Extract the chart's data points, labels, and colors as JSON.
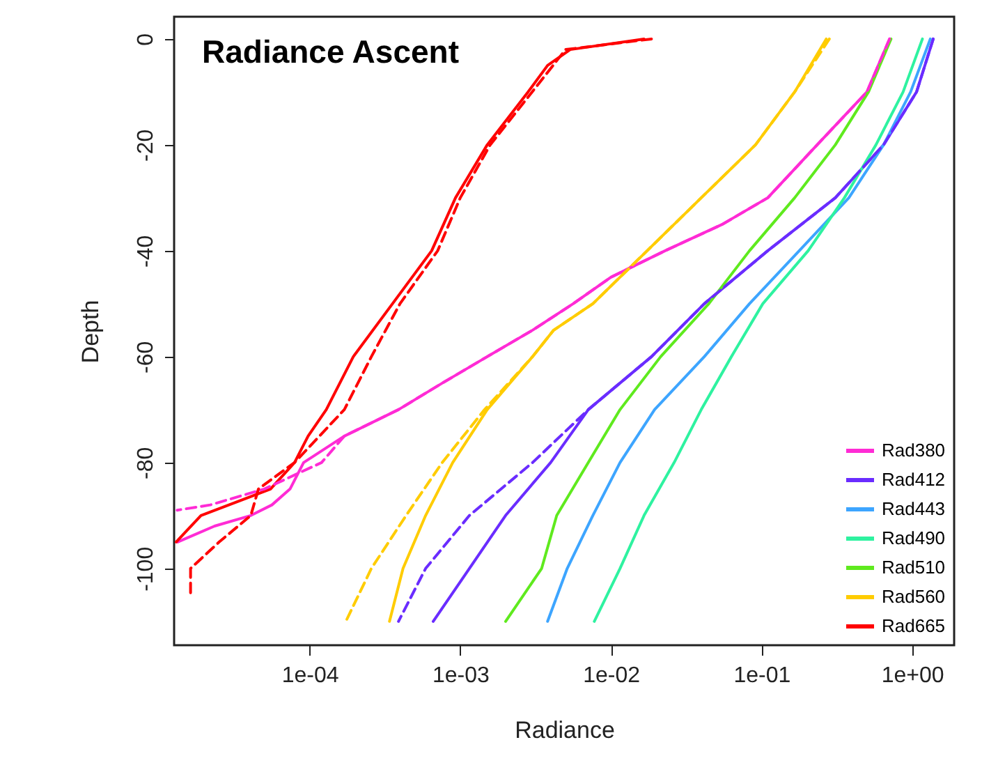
{
  "chart_data": {
    "type": "line",
    "title": "Radiance Ascent",
    "xlabel": "Radiance",
    "ylabel": "Depth",
    "log": "x",
    "grid": false,
    "legend": "bottom right",
    "line_style": "solid",
    "xlim": [
      1.26e-05,
      1.9
    ],
    "xticks": [
      {
        "value": 0.0001,
        "label": "1e-04"
      },
      {
        "value": 0.001,
        "label": "1e-03"
      },
      {
        "value": 0.01,
        "label": "1e-02"
      },
      {
        "value": 0.1,
        "label": "1e-01"
      },
      {
        "value": 1,
        "label": "1e+00"
      }
    ],
    "ylim": [
      -114.5,
      4.2
    ],
    "yticks": [
      0,
      -20,
      -40,
      -60,
      -80,
      -100
    ],
    "series": [
      {
        "name": "Rad380",
        "color": "#ff2bd5",
        "x": [
          0.708,
          0.501,
          0.234,
          0.11,
          0.055,
          0.0229,
          0.01,
          0.00562,
          0.00302,
          0.00151,
          0.000759,
          0.000389,
          0.00017,
          9.12e-05,
          7.41e-05,
          5.62e-05,
          4.07e-05,
          2.34e-05,
          1.33e-05
        ],
        "values": [
          0,
          -10,
          -20,
          -30,
          -35,
          -40,
          -45,
          -50,
          -55,
          -60,
          -65,
          -70,
          -75,
          -80,
          -85,
          -88,
          -90,
          -92,
          -95
        ]
      },
      {
        "name": "Rad412",
        "color": "#6a2cff",
        "x": [
          1.38,
          1.07,
          0.646,
          0.309,
          0.11,
          0.0417,
          0.0186,
          0.00708,
          0.00398,
          0.002,
          0.00115,
          0.000661
        ],
        "values": [
          0,
          -10,
          -20,
          -30,
          -40,
          -50,
          -60,
          -70,
          -80,
          -90,
          -100,
          -110
        ]
      },
      {
        "name": "Rad443",
        "color": "#3da5ff",
        "x": [
          1.32,
          0.977,
          0.646,
          0.38,
          0.178,
          0.0832,
          0.0417,
          0.0195,
          0.0115,
          0.00759,
          0.00513,
          0.0038
        ],
        "values": [
          0,
          -10,
          -20,
          -30,
          -40,
          -50,
          -60,
          -70,
          -80,
          -90,
          -100,
          -110
        ]
      },
      {
        "name": "Rad490",
        "color": "#2ef2a0",
        "x": [
          1.17,
          0.871,
          0.575,
          0.355,
          0.204,
          0.102,
          0.0631,
          0.0398,
          0.0263,
          0.0166,
          0.0115,
          0.00776
        ],
        "values": [
          0,
          -10,
          -20,
          -30,
          -40,
          -50,
          -60,
          -70,
          -80,
          -90,
          -100,
          -110
        ]
      },
      {
        "name": "Rad510",
        "color": "#5fea1e",
        "x": [
          0.724,
          0.513,
          0.309,
          0.166,
          0.0832,
          0.0447,
          0.0214,
          0.0115,
          0.00708,
          0.00437,
          0.00347,
          0.002
        ],
        "values": [
          0,
          -10,
          -20,
          -30,
          -40,
          -50,
          -60,
          -70,
          -80,
          -90,
          -100,
          -110
        ]
      },
      {
        "name": "Rad560",
        "color": "#ffcc00",
        "x": [
          0.269,
          0.166,
          0.0912,
          0.0398,
          0.0174,
          0.00759,
          0.00417,
          0.00302,
          0.00151,
          0.000891,
          0.000589,
          0.000417,
          0.000339
        ],
        "values": [
          0,
          -10,
          -20,
          -30,
          -40,
          -50,
          -55,
          -60,
          -70,
          -80,
          -90,
          -100,
          -110
        ]
      },
      {
        "name": "Rad665",
        "color": "#ff0000",
        "x": [
          0.0166,
          0.00537,
          0.0038,
          0.00282,
          0.00151,
          0.00093,
          0.000646,
          0.000355,
          0.000195,
          0.000129,
          9.77e-05,
          7.94e-05,
          5.5e-05,
          1.9e-05,
          1.3e-05
        ],
        "values": [
          0,
          -2,
          -5,
          -10,
          -20,
          -30,
          -40,
          -50,
          -60,
          -70,
          -75,
          -80,
          -85,
          -90,
          -95
        ]
      },
      {
        "color": "#ff2bd5",
        "line_style": "dashed",
        "x": [
          0.708,
          0.501,
          0.234,
          0.11,
          0.055,
          0.0229,
          0.01,
          0.00562,
          0.00302,
          0.00151,
          0.000759,
          0.000389,
          0.00017,
          0.00012,
          5e-05,
          2.19e-05,
          1.32e-05
        ],
        "values": [
          0,
          -10,
          -20,
          -30,
          -35,
          -40,
          -45,
          -50,
          -55,
          -60,
          -65,
          -70,
          -75,
          -80,
          -85,
          -88,
          -89
        ]
      },
      {
        "color": "#6a2cff",
        "line_style": "dashed",
        "x": [
          1.38,
          1.07,
          0.646,
          0.309,
          0.11,
          0.0417,
          0.0186,
          0.00708,
          0.00302,
          0.00115,
          0.000589,
          0.000389
        ],
        "values": [
          0,
          -10,
          -20,
          -30,
          -40,
          -50,
          -60,
          -70,
          -80,
          -90,
          -100,
          -110
        ]
      },
      {
        "color": "#ffcc00",
        "line_style": "dashed",
        "x": [
          0.282,
          0.166,
          0.0912,
          0.0398,
          0.0174,
          0.00759,
          0.00417,
          0.00302,
          0.00145,
          0.000759,
          0.000437,
          0.000257,
          0.000174
        ],
        "values": [
          0,
          -10,
          -20,
          -30,
          -40,
          -50,
          -55,
          -60,
          -70,
          -80,
          -90,
          -100,
          -110
        ]
      },
      {
        "color": "#ff0000",
        "line_style": "dashed",
        "x": [
          0.0186,
          0.005,
          0.003,
          0.00158,
          0.001,
          0.000708,
          0.000398,
          0.000257,
          0.00017,
          7.94e-05,
          4.57e-05,
          4.07e-05,
          2.51e-05,
          1.62e-05,
          1.62e-05
        ],
        "values": [
          0,
          -2,
          -10,
          -20,
          -30,
          -40,
          -50,
          -60,
          -70,
          -80,
          -85,
          -90,
          -95,
          -100,
          -105
        ]
      }
    ]
  }
}
